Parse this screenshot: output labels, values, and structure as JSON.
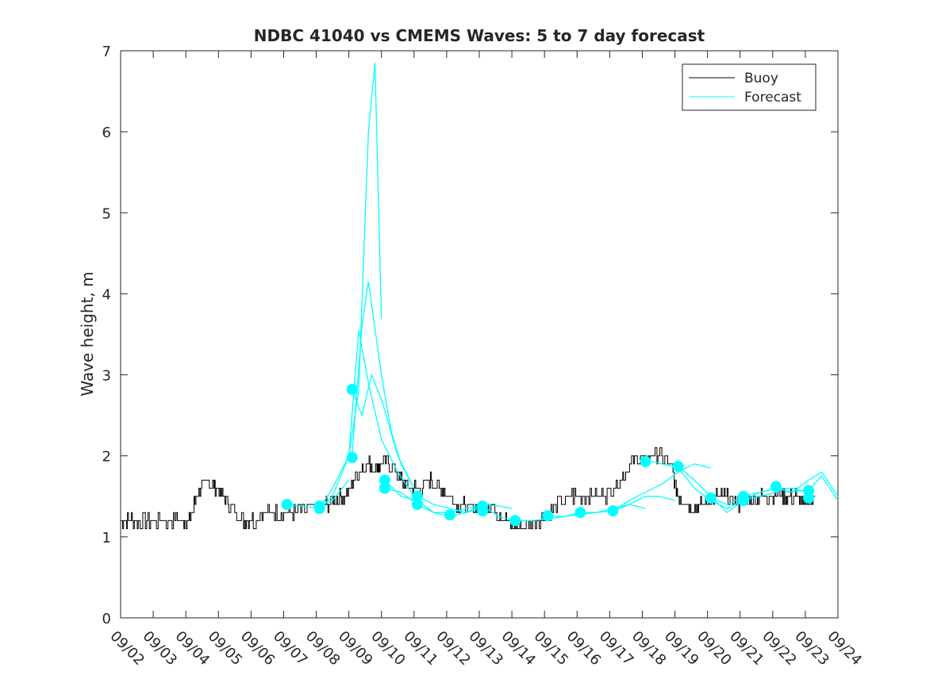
{
  "chart_data": {
    "type": "line",
    "title": "NDBC 41040 vs CMEMS Waves: 5 to 7 day forecast",
    "xlabel": "",
    "ylabel": "Wave height, m",
    "xlim": [
      0,
      22
    ],
    "ylim": [
      0,
      7
    ],
    "x_tick_labels": [
      "09/02",
      "09/03",
      "09/04",
      "09/05",
      "09/06",
      "09/07",
      "09/08",
      "09/09",
      "09/10",
      "09/11",
      "09/12",
      "09/13",
      "09/14",
      "09/15",
      "09/16",
      "09/17",
      "09/18",
      "09/19",
      "09/20",
      "09/21",
      "09/22",
      "09/23",
      "09/24"
    ],
    "y_ticks": [
      0,
      1,
      2,
      3,
      4,
      5,
      6,
      7
    ],
    "legend": {
      "position": "top-right",
      "entries": [
        {
          "label": "Buoy",
          "color": "#000000"
        },
        {
          "label": "Forecast",
          "color": "#00FFFF"
        }
      ]
    },
    "colors": {
      "buoy": "#000000",
      "forecast": "#00FFFF"
    },
    "buoy_series": {
      "name": "Buoy",
      "x": [
        0,
        0.3,
        0.6,
        1.0,
        1.5,
        1.9,
        2.1,
        2.4,
        2.7,
        2.9,
        3.2,
        3.5,
        3.8,
        4.1,
        4.4,
        4.8,
        5.2,
        5.6,
        6.0,
        6.3,
        6.6,
        6.9,
        7.2,
        7.5,
        7.8,
        8.0,
        8.3,
        8.6,
        8.9,
        9.2,
        9.5,
        9.8,
        10.1,
        10.4,
        10.7,
        11.0,
        11.3,
        11.6,
        11.9,
        12.2,
        12.6,
        13.0,
        13.4,
        13.8,
        14.2,
        14.6,
        15.0,
        15.4,
        15.7,
        16.0,
        16.3,
        16.6,
        16.9,
        17.1,
        17.4,
        17.7,
        18.0,
        18.3,
        18.6,
        18.9,
        19.2,
        19.5,
        19.8,
        20.1,
        20.4,
        20.7,
        21.0,
        21.3
      ],
      "y": [
        1.2,
        1.2,
        1.2,
        1.2,
        1.2,
        1.2,
        1.2,
        1.6,
        1.65,
        1.6,
        1.5,
        1.3,
        1.2,
        1.2,
        1.3,
        1.3,
        1.3,
        1.35,
        1.35,
        1.4,
        1.45,
        1.5,
        1.75,
        1.9,
        1.85,
        1.9,
        1.9,
        1.7,
        1.6,
        1.6,
        1.7,
        1.6,
        1.5,
        1.4,
        1.35,
        1.35,
        1.4,
        1.3,
        1.15,
        1.15,
        1.15,
        1.25,
        1.4,
        1.5,
        1.5,
        1.5,
        1.55,
        1.75,
        1.95,
        1.95,
        2.0,
        2.0,
        1.85,
        1.5,
        1.4,
        1.35,
        1.45,
        1.5,
        1.5,
        1.4,
        1.45,
        1.5,
        1.5,
        1.55,
        1.5,
        1.5,
        1.4,
        1.5
      ]
    },
    "forecast_series": [
      {
        "name": "Forecast 1",
        "x": [
          5.1,
          5.5,
          6.0,
          6.5,
          7.0
        ],
        "y": [
          1.4,
          1.38,
          1.36,
          1.45,
          1.7
        ]
      },
      {
        "name": "Forecast 2",
        "x": [
          6.1,
          6.5,
          7.0,
          7.3,
          7.6,
          7.8,
          8.0
        ],
        "y": [
          1.35,
          1.5,
          2.0,
          2.8,
          6.0,
          6.85,
          3.7
        ]
      },
      {
        "name": "Forecast 3",
        "x": [
          7.1,
          7.4,
          7.6,
          8.0,
          8.3,
          8.6,
          9.0
        ],
        "y": [
          2.0,
          3.6,
          4.15,
          3.0,
          2.3,
          1.9,
          1.6
        ]
      },
      {
        "name": "Forecast 4",
        "x": [
          6.1,
          6.5,
          7.0,
          7.3,
          7.6,
          8.0,
          8.5,
          9.0
        ],
        "y": [
          1.35,
          1.6,
          2.0,
          3.55,
          2.9,
          2.2,
          1.8,
          1.5
        ]
      },
      {
        "name": "Forecast 5",
        "x": [
          7.1,
          7.4,
          7.7,
          8.0,
          8.5,
          9.0
        ],
        "y": [
          2.82,
          2.5,
          3.0,
          2.7,
          2.0,
          1.6
        ]
      },
      {
        "name": "Forecast 6",
        "x": [
          8.1,
          8.6,
          9.1,
          9.6,
          10.1,
          10.6,
          11.0
        ],
        "y": [
          1.7,
          1.5,
          1.45,
          1.3,
          1.25,
          1.3,
          1.35
        ]
      },
      {
        "name": "Forecast 7",
        "x": [
          8.1,
          8.6,
          9.1,
          9.6,
          10.1,
          10.6,
          11.1
        ],
        "y": [
          1.6,
          1.55,
          1.4,
          1.3,
          1.3,
          1.35,
          1.4
        ]
      },
      {
        "name": "Forecast 8",
        "x": [
          9.1,
          9.6,
          10.1,
          10.6,
          11.1,
          11.6,
          12.0
        ],
        "y": [
          1.5,
          1.4,
          1.35,
          1.3,
          1.4,
          1.38,
          1.35
        ]
      },
      {
        "name": "Forecast 9",
        "x": [
          11.1,
          11.6,
          12.1,
          12.6,
          13.1,
          13.6,
          14.1
        ],
        "y": [
          1.38,
          1.25,
          1.2,
          1.2,
          1.22,
          1.25,
          1.3
        ]
      },
      {
        "name": "Forecast 10",
        "x": [
          13.1,
          13.6,
          14.1,
          14.6,
          15.1,
          15.6,
          16.1
        ],
        "y": [
          1.26,
          1.25,
          1.28,
          1.3,
          1.32,
          1.4,
          1.35
        ]
      },
      {
        "name": "Forecast 11",
        "x": [
          14.1,
          14.6,
          15.1,
          15.6,
          16.1,
          16.5,
          17.0
        ],
        "y": [
          1.3,
          1.3,
          1.35,
          1.4,
          1.5,
          1.5,
          1.45
        ]
      },
      {
        "name": "Forecast 12",
        "x": [
          15.1,
          15.6,
          16.1,
          16.6,
          17.1,
          17.6,
          18.1
        ],
        "y": [
          1.32,
          1.45,
          1.55,
          1.65,
          1.8,
          1.9,
          1.85
        ]
      },
      {
        "name": "Forecast 13",
        "x": [
          16.1,
          16.6,
          17.1,
          17.6,
          18.1,
          18.6,
          19.1
        ],
        "y": [
          1.95,
          1.9,
          1.85,
          1.6,
          1.45,
          1.35,
          1.45
        ]
      },
      {
        "name": "Forecast 14",
        "x": [
          17.1,
          17.6,
          18.1,
          18.6,
          19.1,
          19.6,
          20.1
        ],
        "y": [
          1.87,
          1.7,
          1.5,
          1.3,
          1.45,
          1.5,
          1.55
        ]
      },
      {
        "name": "Forecast 15",
        "x": [
          18.1,
          18.6,
          19.1,
          19.6,
          20.1,
          20.6,
          21.1
        ],
        "y": [
          1.48,
          1.4,
          1.5,
          1.55,
          1.6,
          1.6,
          1.55
        ]
      },
      {
        "name": "Forecast 16",
        "x": [
          19.1,
          19.6,
          20.1,
          20.6,
          21.1,
          21.5,
          22.0
        ],
        "y": [
          1.45,
          1.55,
          1.6,
          1.55,
          1.7,
          1.8,
          1.5
        ]
      },
      {
        "name": "Forecast 17",
        "x": [
          20.1,
          20.5,
          21.1,
          21.5,
          22.0
        ],
        "y": [
          1.62,
          1.55,
          1.58,
          1.75,
          1.45
        ]
      }
    ],
    "forecast_markers": {
      "x": [
        5.1,
        6.1,
        6.1,
        7.1,
        7.1,
        8.1,
        8.1,
        9.1,
        9.1,
        10.1,
        11.1,
        11.1,
        12.1,
        13.1,
        14.1,
        15.1,
        16.1,
        17.1,
        18.1,
        19.1,
        19.1,
        20.1,
        21.1,
        21.1
      ],
      "y": [
        1.4,
        1.35,
        1.38,
        1.98,
        2.82,
        1.7,
        1.6,
        1.5,
        1.4,
        1.27,
        1.38,
        1.32,
        1.2,
        1.26,
        1.3,
        1.32,
        1.93,
        1.87,
        1.48,
        1.45,
        1.5,
        1.62,
        1.57,
        1.48
      ]
    }
  }
}
